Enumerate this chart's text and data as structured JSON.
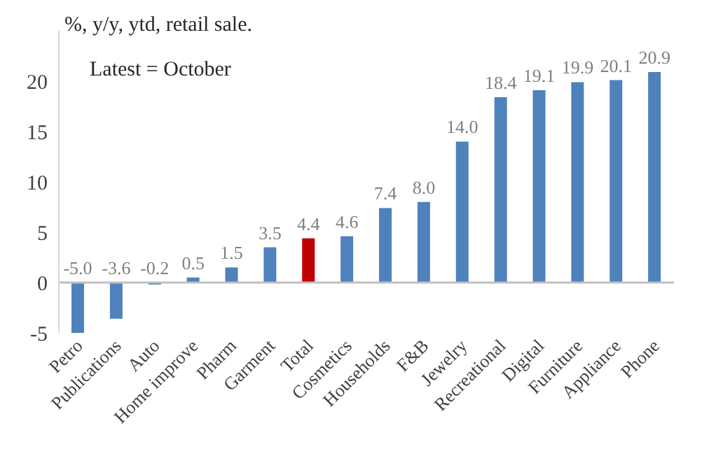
{
  "chart_data": {
    "type": "bar",
    "title": "%, y/y, ytd, retail sale.",
    "annotations": [
      "Latest = October"
    ],
    "categories": [
      "Petro",
      "Publications",
      "Auto",
      "Home improve",
      "Pharm",
      "Garment",
      "Total",
      "Cosmetics",
      "Households",
      "F&B",
      "Jewelry",
      "Recreational",
      "Digital",
      "Furniture",
      "Appliance",
      "Phone"
    ],
    "values": [
      -5.0,
      -3.6,
      -0.2,
      0.5,
      1.5,
      3.5,
      4.4,
      4.6,
      7.4,
      8.0,
      14.0,
      18.4,
      19.1,
      19.9,
      20.1,
      20.9
    ],
    "colors": [
      "#4f81bd",
      "#4f81bd",
      "#4f81bd",
      "#4f81bd",
      "#4f81bd",
      "#4f81bd",
      "#c00000",
      "#4f81bd",
      "#4f81bd",
      "#4f81bd",
      "#4f81bd",
      "#4f81bd",
      "#4f81bd",
      "#4f81bd",
      "#4f81bd",
      "#4f81bd"
    ],
    "value_labels": [
      "-5.0",
      "-3.6",
      "-0.2",
      "0.5",
      "1.5",
      "3.5",
      "4.4",
      "4.6",
      "7.4",
      "8.0",
      "14.0",
      "18.4",
      "19.1",
      "19.9",
      "20.1",
      "20.9"
    ],
    "ylim": [
      -5,
      25
    ],
    "yticks": [
      -5,
      0,
      5,
      10,
      15,
      20
    ],
    "ref_lines": [
      {
        "axis": "y",
        "value": 0,
        "color": "#bfbfbf"
      }
    ]
  }
}
